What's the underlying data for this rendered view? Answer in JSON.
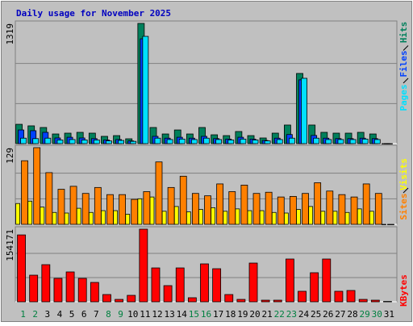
{
  "chart_data": [
    {
      "type": "bar",
      "title": "Daily usage for November 2025",
      "ylim": [
        0,
        1319
      ],
      "yticks": [
        1319
      ],
      "series": [
        {
          "name": "Hits",
          "color": "#00805c",
          "values": [
            212,
            195,
            177,
            106,
            115,
            124,
            115,
            80,
            88,
            53,
            1319,
            177,
            106,
            150,
            106,
            177,
            97,
            88,
            133,
            88,
            62,
            115,
            204,
            770,
            204,
            124,
            115,
            115,
            124,
            106,
            0
          ]
        },
        {
          "name": "Files",
          "color": "#0040ff",
          "values": [
            150,
            142,
            124,
            62,
            70,
            62,
            55,
            40,
            45,
            30,
            1150,
            80,
            60,
            70,
            60,
            80,
            55,
            50,
            70,
            50,
            35,
            60,
            100,
            700,
            90,
            60,
            55,
            55,
            60,
            55,
            0
          ]
        },
        {
          "name": "Pages",
          "color": "#00e0ff",
          "values": [
            60,
            55,
            60,
            40,
            45,
            40,
            40,
            30,
            35,
            25,
            1177,
            60,
            45,
            50,
            45,
            60,
            45,
            40,
            50,
            40,
            30,
            45,
            60,
            717,
            60,
            45,
            45,
            45,
            50,
            45,
            0
          ]
        }
      ]
    },
    {
      "type": "bar",
      "ylim": [
        0,
        129
      ],
      "yticks": [
        129
      ],
      "series": [
        {
          "name": "Sites",
          "color": "#ff8000",
          "values": [
            107,
            129,
            87,
            59,
            64,
            52,
            62,
            50,
            50,
            42,
            55,
            105,
            62,
            81,
            52,
            48,
            68,
            55,
            66,
            52,
            54,
            46,
            47,
            52,
            70,
            56,
            50,
            46,
            68,
            52,
            0
          ]
        },
        {
          "name": "Visits",
          "color": "#ffff00",
          "values": [
            35,
            39,
            29,
            20,
            19,
            27,
            20,
            23,
            23,
            17,
            43,
            46,
            22,
            30,
            21,
            25,
            28,
            22,
            26,
            23,
            23,
            20,
            19,
            25,
            30,
            22,
            22,
            20,
            26,
            22,
            0
          ]
        }
      ]
    },
    {
      "type": "bar",
      "ylim": [
        0,
        154171
      ],
      "yticks": [
        154171
      ],
      "categories": [
        "1",
        "2",
        "3",
        "4",
        "5",
        "6",
        "7",
        "8",
        "9",
        "10",
        "11",
        "12",
        "13",
        "14",
        "15",
        "16",
        "17",
        "18",
        "19",
        "20",
        "21",
        "22",
        "23",
        "24",
        "25",
        "26",
        "27",
        "28",
        "29",
        "30",
        "31"
      ],
      "category_colors": [
        "#008040",
        "#008040",
        "#000000",
        "#000000",
        "#000000",
        "#000000",
        "#000000",
        "#008040",
        "#008040",
        "#000000",
        "#000000",
        "#000000",
        "#000000",
        "#000000",
        "#008040",
        "#008040",
        "#000000",
        "#000000",
        "#000000",
        "#000000",
        "#000000",
        "#008040",
        "#008040",
        "#000000",
        "#000000",
        "#000000",
        "#000000",
        "#000000",
        "#008040",
        "#008040",
        "#000000"
      ],
      "series": [
        {
          "name": "KBytes",
          "color": "#ff0000",
          "values": [
            142000,
            56500,
            78800,
            49700,
            63400,
            49700,
            41100,
            15400,
            5100,
            13700,
            154171,
            71900,
            34300,
            71900,
            8600,
            80500,
            70200,
            15400,
            5100,
            82200,
            3400,
            3400,
            90800,
            22300,
            61700,
            90800,
            22300,
            24000,
            5100,
            3400,
            800
          ]
        }
      ]
    }
  ]
}
